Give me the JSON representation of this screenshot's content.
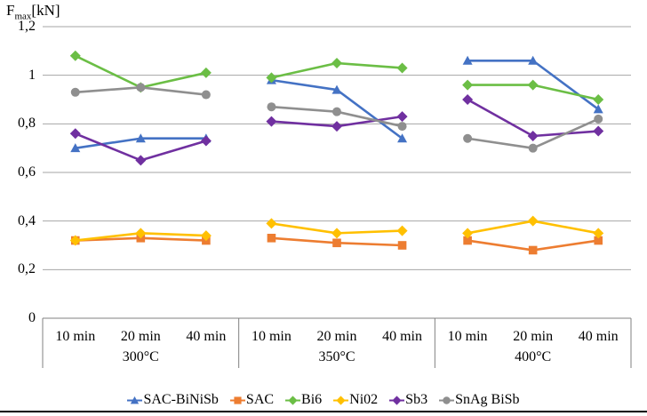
{
  "chart_data": {
    "type": "line",
    "y_axis_label": {
      "prefix": "F",
      "subscript": "max",
      "unit": "[kN]"
    },
    "ylim": [
      0,
      1.2
    ],
    "grid": true,
    "legend_position": "bottom",
    "y_ticks": [
      {
        "value": 0,
        "label": "0"
      },
      {
        "value": 0.2,
        "label": "0,2"
      },
      {
        "value": 0.4,
        "label": "0,4"
      },
      {
        "value": 0.6,
        "label": "0,6"
      },
      {
        "value": 0.8,
        "label": "0,8"
      },
      {
        "value": 1,
        "label": "1"
      },
      {
        "value": 1.2,
        "label": "1,2"
      }
    ],
    "groups": [
      {
        "label": "300°C",
        "slots": [
          "10 min",
          "20 min",
          "40 min"
        ]
      },
      {
        "label": "350°C",
        "slots": [
          "10 min",
          "20 min",
          "40 min"
        ]
      },
      {
        "label": "400°C",
        "slots": [
          "10 min",
          "20 min",
          "40 min"
        ]
      }
    ],
    "series": [
      {
        "name": "SAC-BiNiSb",
        "color": "#4472C4",
        "marker": "triangle",
        "values": [
          0.7,
          0.74,
          0.74,
          0.98,
          0.94,
          0.74,
          1.06,
          1.06,
          0.86
        ]
      },
      {
        "name": "SAC",
        "color": "#ED7D31",
        "marker": "square",
        "values": [
          0.32,
          0.33,
          0.32,
          0.33,
          0.31,
          0.3,
          0.32,
          0.28,
          0.32
        ]
      },
      {
        "name": "Bi6",
        "color": "#6BBE45",
        "marker": "diamond",
        "values": [
          1.08,
          0.95,
          1.01,
          0.99,
          1.05,
          1.03,
          0.96,
          0.96,
          0.9
        ]
      },
      {
        "name": "Ni02",
        "color": "#FFC000",
        "marker": "diamond",
        "values": [
          0.32,
          0.35,
          0.34,
          0.39,
          0.35,
          0.36,
          0.35,
          0.4,
          0.35
        ]
      },
      {
        "name": "Sb3",
        "color": "#7030A0",
        "marker": "diamond",
        "values": [
          0.76,
          0.65,
          0.73,
          0.81,
          0.79,
          0.83,
          0.9,
          0.75,
          0.77
        ]
      },
      {
        "name": "SnAg BiSb",
        "color": "#8F8F8F",
        "marker": "circle",
        "values": [
          0.93,
          0.95,
          0.92,
          0.87,
          0.85,
          0.79,
          0.74,
          0.7,
          0.82
        ]
      }
    ],
    "colors": {
      "gridline": "#A6A6A6",
      "axis_line": "#808080",
      "text": "#000000"
    }
  }
}
